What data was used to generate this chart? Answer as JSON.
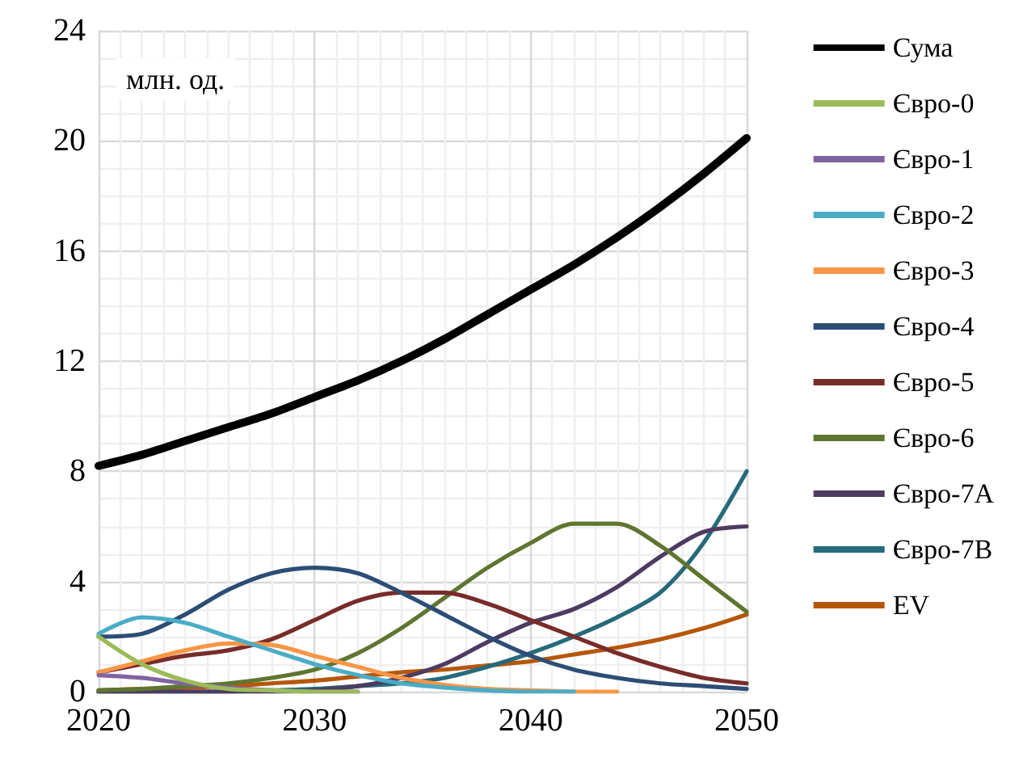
{
  "chart_data": {
    "type": "line",
    "annotations": [
      "млн. од."
    ],
    "x": [
      2020,
      2022,
      2024,
      2026,
      2028,
      2030,
      2032,
      2034,
      2036,
      2038,
      2040,
      2042,
      2044,
      2046,
      2048,
      2050
    ],
    "series": [
      {
        "name": "Сума",
        "color": "#000000",
        "values": [
          8.2,
          8.6,
          9.1,
          9.6,
          10.1,
          10.7,
          11.3,
          12.0,
          12.8,
          13.7,
          14.6,
          15.5,
          16.5,
          17.6,
          18.8,
          20.1
        ]
      },
      {
        "name": "Євро-0",
        "color": "#9bbb59",
        "values": [
          2.0,
          1.0,
          0.4,
          0.1,
          0.05,
          0,
          0,
          null,
          null,
          null,
          null,
          null,
          null,
          null,
          null,
          null
        ]
      },
      {
        "name": "Євро-1",
        "color": "#8064a2",
        "values": [
          0.6,
          0.5,
          0.3,
          0.15,
          0.05,
          0,
          0,
          null,
          null,
          null,
          null,
          null,
          null,
          null,
          null,
          null
        ]
      },
      {
        "name": "Євро-2",
        "color": "#4bacc6",
        "values": [
          2.1,
          2.7,
          2.5,
          2.0,
          1.5,
          1.0,
          0.6,
          0.3,
          0.15,
          0.05,
          0,
          0,
          null,
          null,
          null,
          null
        ]
      },
      {
        "name": "Євро-3",
        "color": "#f79646",
        "values": [
          0.7,
          1.1,
          1.5,
          1.75,
          1.7,
          1.3,
          0.9,
          0.5,
          0.25,
          0.1,
          0.05,
          0,
          0,
          null,
          null,
          null
        ]
      },
      {
        "name": "Євро-4",
        "color": "#2c4d75",
        "values": [
          2.0,
          2.1,
          2.8,
          3.7,
          4.3,
          4.5,
          4.3,
          3.6,
          2.8,
          2.0,
          1.3,
          0.8,
          0.5,
          0.3,
          0.2,
          0.1
        ]
      },
      {
        "name": "Євро-5",
        "color": "#772c2a",
        "values": [
          0.7,
          1.0,
          1.3,
          1.5,
          1.9,
          2.6,
          3.3,
          3.6,
          3.6,
          3.2,
          2.6,
          2.0,
          1.4,
          0.9,
          0.5,
          0.3
        ]
      },
      {
        "name": "Євро-6",
        "color": "#5f7530",
        "values": [
          0.05,
          0.1,
          0.2,
          0.3,
          0.5,
          0.8,
          1.4,
          2.3,
          3.4,
          4.5,
          5.4,
          6.1,
          6.1,
          5.3,
          4.1,
          2.9
        ]
      },
      {
        "name": "Євро-7А",
        "color": "#4d3b62",
        "values": [
          0,
          0,
          0,
          0,
          0,
          0.05,
          0.2,
          0.5,
          1.0,
          1.8,
          2.5,
          3.0,
          3.8,
          4.9,
          5.8,
          6.0
        ]
      },
      {
        "name": "Євро-7В",
        "color": "#276a7c",
        "values": [
          0,
          0,
          0,
          0,
          0.05,
          0.1,
          0.2,
          0.3,
          0.5,
          0.9,
          1.4,
          2.0,
          2.7,
          3.6,
          5.4,
          8.0
        ]
      },
      {
        "name": "EV",
        "color": "#b65708",
        "values": [
          0.05,
          0.1,
          0.15,
          0.2,
          0.3,
          0.4,
          0.55,
          0.7,
          0.8,
          0.95,
          1.1,
          1.35,
          1.6,
          1.9,
          2.3,
          2.8
        ]
      }
    ],
    "xlim": [
      2020,
      2050
    ],
    "xticks": [
      2020,
      2030,
      2040,
      2050
    ],
    "ylim": [
      0,
      24
    ],
    "yticks": [
      0,
      4,
      8,
      12,
      16,
      20,
      24
    ],
    "grid": true,
    "legend": "right",
    "marker": "none",
    "line_style": "solid"
  }
}
